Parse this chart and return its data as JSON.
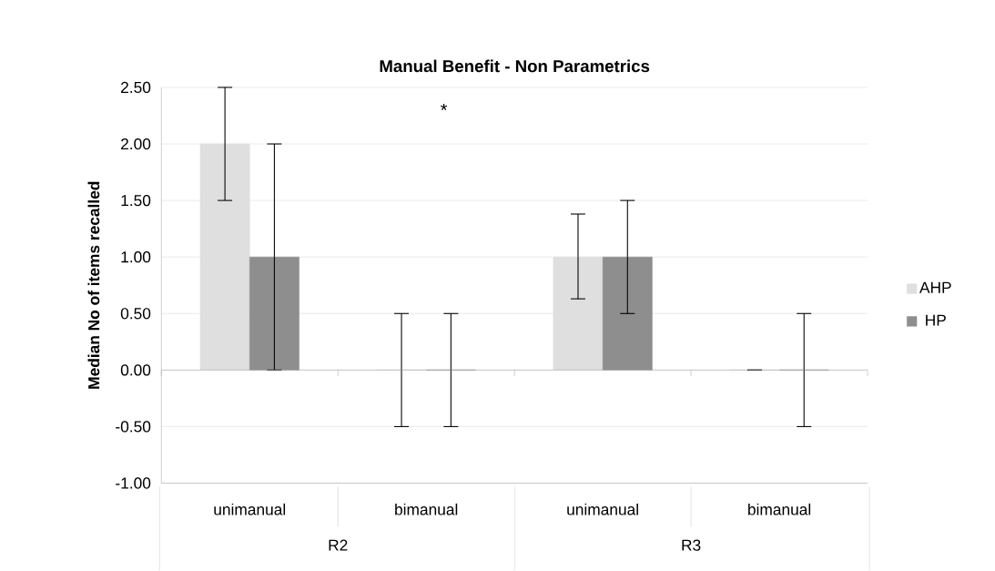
{
  "chart_data": {
    "type": "bar",
    "title": "Manual Benefit - Non Parametrics",
    "ylabel": "Median No of items recalled",
    "categories": [
      "unimanual",
      "bimanual",
      "unimanual",
      "bimanual"
    ],
    "series": [
      {
        "name": "AHP",
        "color": "#dfdfdf",
        "values": [
          2,
          0,
          1,
          0
        ],
        "errors": [
          [
            1.5,
            2.5
          ],
          [
            -0.5,
            0.5
          ],
          [
            0.63,
            1.38
          ],
          [
            0,
            0
          ]
        ]
      },
      {
        "name": "HP",
        "color": "#8e8e8e",
        "values": [
          1,
          0,
          1,
          0
        ],
        "errors": [
          [
            0,
            2
          ],
          [
            -0.5,
            0.5
          ],
          [
            0.5,
            1.5
          ],
          [
            -0.5,
            0.5
          ]
        ]
      }
    ],
    "ylim": [
      -1,
      2.5
    ],
    "yticks": [
      {
        "value": -1,
        "label": "-1.00"
      },
      {
        "value": -0.5,
        "label": "-0.50"
      },
      {
        "value": 0,
        "label": "0.00"
      },
      {
        "value": 0.5,
        "label": "0.50"
      },
      {
        "value": 1,
        "label": "1.00"
      },
      {
        "value": 1.5,
        "label": "1.50"
      },
      {
        "value": 2,
        "label": "2.00"
      },
      {
        "value": 2.5,
        "label": "2.50"
      }
    ],
    "grid": "y",
    "legend": "right",
    "annotations": [
      "*",
      "R2",
      "R3"
    ]
  }
}
